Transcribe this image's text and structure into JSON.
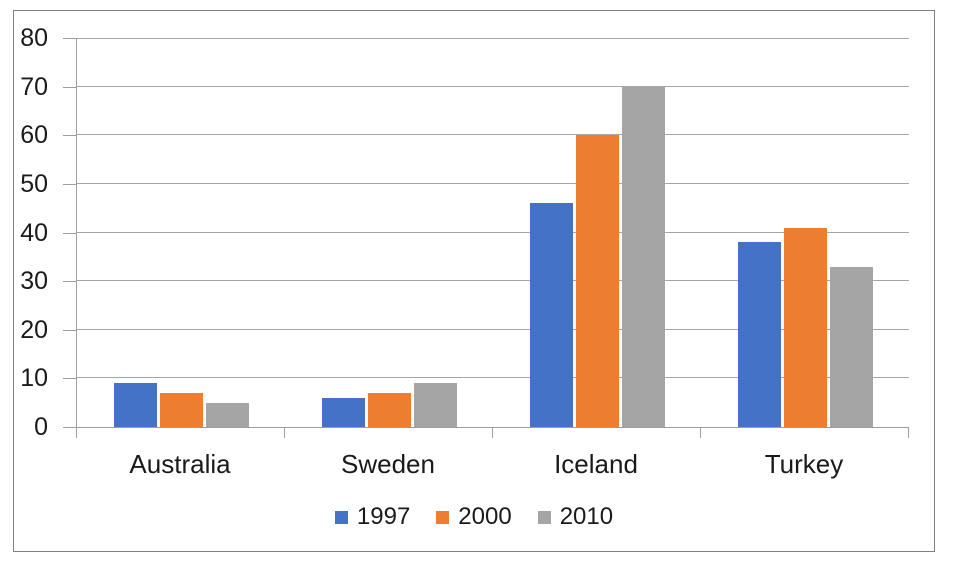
{
  "chart_data": {
    "type": "bar",
    "title": "",
    "xlabel": "",
    "ylabel": "",
    "categories": [
      "Australia",
      "Sweden",
      "Iceland",
      "Turkey"
    ],
    "series": [
      {
        "name": "1997",
        "color": "#4472C4",
        "values": [
          9,
          6,
          46,
          38
        ]
      },
      {
        "name": "2000",
        "color": "#ED7D31",
        "values": [
          7,
          7,
          60,
          41
        ]
      },
      {
        "name": "2010",
        "color": "#A5A5A5",
        "values": [
          5,
          9,
          70,
          33
        ]
      }
    ],
    "ylim": [
      0,
      80
    ],
    "yticks": [
      0,
      10,
      20,
      30,
      40,
      50,
      60,
      70,
      80
    ],
    "grid": true,
    "legend_position": "bottom"
  },
  "colors": {
    "background": "#FFFFFF",
    "frame_border": "#808080",
    "gridline": "#A6A6A6",
    "axis": "#9E9E9E",
    "text": "#1A1A1A"
  }
}
